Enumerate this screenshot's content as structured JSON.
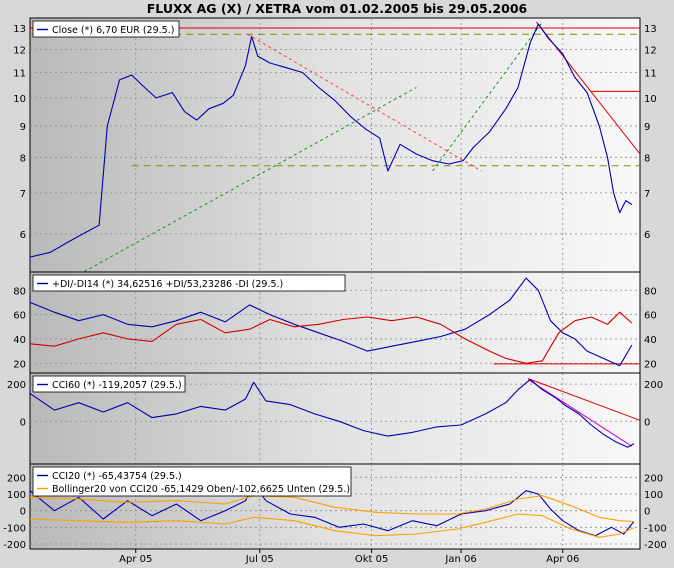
{
  "chart_title": "FLUXX AG (X) / XETRA vom 01.02.2005 bis 29.05.2006",
  "x_ticks": [
    "Apr 05",
    "Jul 05",
    "Okt 05",
    "Jan 06",
    "Apr 06"
  ],
  "colors": {
    "price": "#0000b0",
    "resistance": "#e00000",
    "downtrend": "#ff4040",
    "uptrend": "#209020",
    "dashed_level": "#8a8a00",
    "minus_di": "#d00000",
    "cci_trend": "#cc00cc",
    "bollinger": "#ffa000"
  },
  "chart_data": [
    {
      "type": "line",
      "panel": "price",
      "legend": "Close (*) 6,70 EUR (29.5.)",
      "y_ticks": [
        "6",
        "7",
        "8",
        "9",
        "10",
        "11",
        "12",
        "13"
      ],
      "ylim": [
        5.2,
        13.5
      ],
      "log_scale": true,
      "grid": true,
      "series": [
        {
          "name": "Close",
          "points": [
            [
              0,
              5.5
            ],
            [
              10,
              5.6
            ],
            [
              18,
              5.8
            ],
            [
              26,
              6.0
            ],
            [
              34,
              6.2
            ],
            [
              38,
              9.0
            ],
            [
              44,
              10.7
            ],
            [
              50,
              10.9
            ],
            [
              55,
              10.5
            ],
            [
              62,
              10.0
            ],
            [
              70,
              10.2
            ],
            [
              76,
              9.5
            ],
            [
              82,
              9.2
            ],
            [
              88,
              9.6
            ],
            [
              95,
              9.8
            ],
            [
              100,
              10.1
            ],
            [
              106,
              11.3
            ],
            [
              109,
              12.6
            ],
            [
              112,
              11.7
            ],
            [
              118,
              11.4
            ],
            [
              126,
              11.2
            ],
            [
              134,
              11.0
            ],
            [
              142,
              10.4
            ],
            [
              150,
              9.9
            ],
            [
              158,
              9.3
            ],
            [
              165,
              8.9
            ],
            [
              172,
              8.6
            ],
            [
              176,
              7.6
            ],
            [
              182,
              8.4
            ],
            [
              190,
              8.1
            ],
            [
              198,
              7.9
            ],
            [
              206,
              7.8
            ],
            [
              213,
              7.9
            ],
            [
              218,
              8.3
            ],
            [
              226,
              8.8
            ],
            [
              234,
              9.6
            ],
            [
              240,
              10.4
            ],
            [
              246,
              12.3
            ],
            [
              250,
              13.2
            ],
            [
              255,
              12.5
            ],
            [
              262,
              11.8
            ],
            [
              268,
              10.8
            ],
            [
              274,
              10.2
            ],
            [
              280,
              9.0
            ],
            [
              284,
              8.0
            ],
            [
              287,
              7.0
            ],
            [
              290,
              6.5
            ],
            [
              293,
              6.8
            ],
            [
              296,
              6.7
            ]
          ]
        }
      ],
      "annotations": [
        {
          "kind": "horizontal",
          "style": "solid",
          "color": "resistance",
          "y": 13.0,
          "x": [
            0,
            300
          ]
        },
        {
          "kind": "horizontal",
          "style": "dashed",
          "color": "dashed_level",
          "y": 12.7,
          "x": [
            0,
            300
          ]
        },
        {
          "kind": "horizontal",
          "style": "dashed",
          "color": "dashed_level",
          "y": 7.75,
          "x": [
            50,
            300
          ]
        },
        {
          "kind": "horizontal",
          "style": "solid",
          "color": "resistance",
          "y": 10.25,
          "x": [
            276,
            300
          ]
        },
        {
          "kind": "trend",
          "style": "dashed",
          "color": "downtrend",
          "from": [
            107,
            12.7
          ],
          "to": [
            222,
            7.6
          ]
        },
        {
          "kind": "trend",
          "style": "dashed",
          "color": "uptrend",
          "from": [
            24,
            5.15
          ],
          "to": [
            190,
            10.4
          ]
        },
        {
          "kind": "trend",
          "style": "dashed",
          "color": "uptrend",
          "from": [
            198,
            7.6
          ],
          "to": [
            252,
            13.3
          ]
        },
        {
          "kind": "trend",
          "style": "solid",
          "color": "resistance",
          "from": [
            249,
            13.3
          ],
          "to": [
            300,
            8.1
          ]
        }
      ]
    },
    {
      "type": "line",
      "panel": "dmi",
      "legend": "+DI/-DI14 (*) 34,62516 +DI/53,23286 -DI (29.5.)",
      "y_ticks": [
        "20",
        "40",
        "60",
        "80"
      ],
      "ylim": [
        12,
        95
      ],
      "grid": true,
      "series": [
        {
          "name": "+DI",
          "points": [
            [
              0,
              70
            ],
            [
              12,
              62
            ],
            [
              24,
              55
            ],
            [
              36,
              60
            ],
            [
              48,
              52
            ],
            [
              60,
              50
            ],
            [
              72,
              55
            ],
            [
              84,
              62
            ],
            [
              96,
              54
            ],
            [
              108,
              68
            ],
            [
              118,
              60
            ],
            [
              130,
              52
            ],
            [
              142,
              45
            ],
            [
              154,
              38
            ],
            [
              166,
              30
            ],
            [
              178,
              34
            ],
            [
              190,
              38
            ],
            [
              202,
              42
            ],
            [
              214,
              48
            ],
            [
              226,
              60
            ],
            [
              236,
              72
            ],
            [
              244,
              90
            ],
            [
              250,
              80
            ],
            [
              256,
              55
            ],
            [
              262,
              45
            ],
            [
              268,
              40
            ],
            [
              274,
              30
            ],
            [
              282,
              24
            ],
            [
              290,
              18
            ],
            [
              296,
              35
            ]
          ]
        },
        {
          "name": "-DI",
          "points": [
            [
              0,
              36
            ],
            [
              12,
              34
            ],
            [
              24,
              40
            ],
            [
              36,
              45
            ],
            [
              48,
              40
            ],
            [
              60,
              38
            ],
            [
              72,
              52
            ],
            [
              84,
              56
            ],
            [
              96,
              45
            ],
            [
              108,
              48
            ],
            [
              118,
              56
            ],
            [
              130,
              50
            ],
            [
              142,
              52
            ],
            [
              154,
              56
            ],
            [
              166,
              58
            ],
            [
              178,
              55
            ],
            [
              190,
              58
            ],
            [
              202,
              52
            ],
            [
              214,
              40
            ],
            [
              226,
              30
            ],
            [
              234,
              24
            ],
            [
              244,
              20
            ],
            [
              252,
              22
            ],
            [
              260,
              45
            ],
            [
              268,
              55
            ],
            [
              276,
              58
            ],
            [
              284,
              52
            ],
            [
              290,
              62
            ],
            [
              296,
              53
            ]
          ]
        }
      ],
      "annotations": [
        {
          "kind": "horizontal",
          "style": "solid",
          "color": "resistance",
          "y": 19.5,
          "x": [
            228,
            300
          ]
        }
      ]
    },
    {
      "type": "line",
      "panel": "cci60",
      "legend": "CCI60 (*) -119,2057 (29.5.)",
      "y_ticks": [
        "0",
        "200"
      ],
      "ylim": [
        -230,
        260
      ],
      "grid": true,
      "series": [
        {
          "name": "CCI60",
          "points": [
            [
              0,
              150
            ],
            [
              12,
              60
            ],
            [
              24,
              100
            ],
            [
              36,
              50
            ],
            [
              48,
              100
            ],
            [
              60,
              20
            ],
            [
              72,
              40
            ],
            [
              84,
              80
            ],
            [
              96,
              60
            ],
            [
              106,
              120
            ],
            [
              110,
              210
            ],
            [
              116,
              110
            ],
            [
              128,
              90
            ],
            [
              140,
              40
            ],
            [
              152,
              0
            ],
            [
              164,
              -50
            ],
            [
              176,
              -80
            ],
            [
              188,
              -60
            ],
            [
              200,
              -30
            ],
            [
              212,
              -20
            ],
            [
              224,
              40
            ],
            [
              234,
              100
            ],
            [
              240,
              170
            ],
            [
              246,
              225
            ],
            [
              252,
              170
            ],
            [
              258,
              130
            ],
            [
              264,
              80
            ],
            [
              270,
              40
            ],
            [
              276,
              -20
            ],
            [
              282,
              -70
            ],
            [
              288,
              -110
            ],
            [
              294,
              -140
            ],
            [
              297,
              -120
            ]
          ]
        }
      ],
      "annotations": [
        {
          "kind": "trend",
          "style": "solid",
          "color": "resistance",
          "from": [
            245,
            230
          ],
          "to": [
            300,
            5
          ]
        },
        {
          "kind": "trend",
          "style": "solid",
          "color": "cci_trend",
          "from": [
            245,
            225
          ],
          "to": [
            296,
            -135
          ]
        }
      ]
    },
    {
      "type": "line",
      "panel": "cci20",
      "legend": [
        "CCI20 (*) -65,43754 (29.5.)",
        "Bollinger20 von CCI20 -65,1429 Oben/-102,6625 Unten (29.5.)"
      ],
      "y_ticks": [
        "-200",
        "-100",
        "0",
        "100",
        "200"
      ],
      "ylim": [
        -230,
        280
      ],
      "grid": true,
      "series": [
        {
          "name": "CCI20",
          "points": [
            [
              0,
              120
            ],
            [
              12,
              0
            ],
            [
              24,
              80
            ],
            [
              36,
              -50
            ],
            [
              48,
              60
            ],
            [
              60,
              -30
            ],
            [
              72,
              40
            ],
            [
              84,
              -60
            ],
            [
              96,
              0
            ],
            [
              106,
              60
            ],
            [
              110,
              160
            ],
            [
              116,
              60
            ],
            [
              128,
              -20
            ],
            [
              140,
              -40
            ],
            [
              152,
              -100
            ],
            [
              164,
              -80
            ],
            [
              176,
              -120
            ],
            [
              188,
              -60
            ],
            [
              200,
              -90
            ],
            [
              212,
              -20
            ],
            [
              224,
              0
            ],
            [
              236,
              40
            ],
            [
              244,
              120
            ],
            [
              250,
              100
            ],
            [
              256,
              10
            ],
            [
              262,
              -60
            ],
            [
              270,
              -120
            ],
            [
              278,
              -150
            ],
            [
              286,
              -100
            ],
            [
              292,
              -140
            ],
            [
              297,
              -65
            ]
          ]
        },
        {
          "name": "Bollinger oben",
          "points": [
            [
              0,
              80
            ],
            [
              24,
              70
            ],
            [
              48,
              50
            ],
            [
              72,
              60
            ],
            [
              96,
              40
            ],
            [
              110,
              90
            ],
            [
              130,
              80
            ],
            [
              150,
              20
            ],
            [
              170,
              -10
            ],
            [
              190,
              -20
            ],
            [
              210,
              -20
            ],
            [
              224,
              10
            ],
            [
              240,
              70
            ],
            [
              252,
              90
            ],
            [
              266,
              30
            ],
            [
              280,
              -40
            ],
            [
              290,
              -60
            ],
            [
              297,
              -65
            ]
          ]
        },
        {
          "name": "Bollinger unten",
          "points": [
            [
              0,
              -50
            ],
            [
              24,
              -60
            ],
            [
              48,
              -70
            ],
            [
              72,
              -60
            ],
            [
              96,
              -80
            ],
            [
              110,
              -40
            ],
            [
              130,
              -60
            ],
            [
              150,
              -120
            ],
            [
              170,
              -150
            ],
            [
              190,
              -140
            ],
            [
              210,
              -110
            ],
            [
              224,
              -70
            ],
            [
              240,
              -20
            ],
            [
              252,
              -30
            ],
            [
              266,
              -110
            ],
            [
              280,
              -160
            ],
            [
              290,
              -140
            ],
            [
              297,
              -103
            ]
          ]
        }
      ]
    }
  ]
}
